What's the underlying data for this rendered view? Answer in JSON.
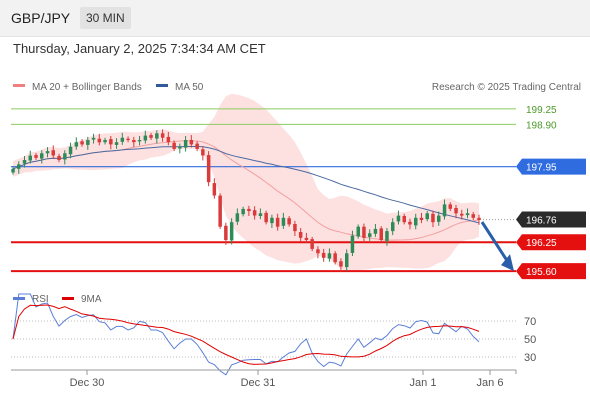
{
  "header": {
    "symbol": "GBP/JPY",
    "timeframe": "30 MIN"
  },
  "datetime": "Thursday, January 2, 2025 7:34:34 AM CET",
  "legend": [
    {
      "label": "MA 20 + Bollinger Bands",
      "color": "#f08080"
    },
    {
      "label": "MA 50",
      "color": "#2e5b9a"
    }
  ],
  "copyright": "Research © 2025 Trading Central",
  "rsi_legend": [
    {
      "label": "RSI",
      "color": "#5b7fd6"
    },
    {
      "label": "9MA",
      "color": "#e00000"
    }
  ],
  "colors": {
    "bull": "#2e8b57",
    "bear": "#d93a3a",
    "bollinger_fill": "#fde0e0",
    "ma20": "#f2a0a0",
    "ma50": "#4a6aa0",
    "resistance_green": "#8ccb60",
    "pivot_blue": "#2f6ce0",
    "support_red": "#e41010",
    "current_price": "#2b2b2b",
    "arrow": "#2a5ea8"
  },
  "chart_data": [
    {
      "type": "candlestick",
      "x_labels": [
        "Dec 30",
        "Dec 31",
        "Jan 1",
        "Jan 6"
      ],
      "ylim": [
        195.4,
        199.45
      ],
      "levels": [
        {
          "label": "199.25",
          "value": 199.25,
          "kind": "resistance"
        },
        {
          "label": "198.90",
          "value": 198.9,
          "kind": "resistance"
        },
        {
          "label": "197.95",
          "value": 197.95,
          "kind": "pivot"
        },
        {
          "label": "196.76",
          "value": 196.76,
          "kind": "last"
        },
        {
          "label": "196.25",
          "value": 196.25,
          "kind": "support"
        },
        {
          "label": "195.60",
          "value": 195.6,
          "kind": "support"
        }
      ],
      "close": [
        197.9,
        198.0,
        198.1,
        198.2,
        198.15,
        198.25,
        198.3,
        198.2,
        198.1,
        198.25,
        198.4,
        198.5,
        198.45,
        198.55,
        198.6,
        198.5,
        198.55,
        198.45,
        198.5,
        198.6,
        198.55,
        198.5,
        198.55,
        198.65,
        198.6,
        198.7,
        198.6,
        198.5,
        198.35,
        198.4,
        198.55,
        198.45,
        198.35,
        198.2,
        197.6,
        197.3,
        196.6,
        196.3,
        196.7,
        196.9,
        197.0,
        196.95,
        196.85,
        196.9,
        196.7,
        196.8,
        196.6,
        196.8,
        196.65,
        196.5,
        196.35,
        196.3,
        196.1,
        196.0,
        195.9,
        196.0,
        195.8,
        195.7,
        196.0,
        196.4,
        196.6,
        196.35,
        196.45,
        196.55,
        196.3,
        196.5,
        196.7,
        196.85,
        196.7,
        196.65,
        196.8,
        196.75,
        196.9,
        196.7,
        196.85,
        197.1,
        197.0,
        196.9,
        196.85,
        196.9,
        196.8,
        196.75
      ],
      "rsi": {
        "ylim": [
          20,
          80
        ],
        "ticks": [
          70,
          50,
          30
        ]
      }
    }
  ]
}
